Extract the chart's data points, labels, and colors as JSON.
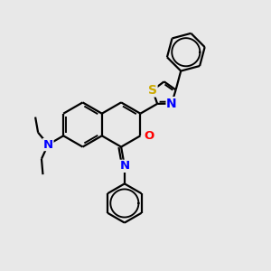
{
  "bg_color": "#e8e8e8",
  "bond_color": "#000000",
  "bond_width": 1.6,
  "atom_colors": {
    "N": "#0000ff",
    "O": "#ff0000",
    "S": "#ccaa00"
  },
  "font_size": 9.5,
  "fig_size": [
    3.0,
    3.0
  ],
  "dpi": 100,
  "xlim": [
    0,
    10
  ],
  "ylim": [
    0,
    10
  ]
}
